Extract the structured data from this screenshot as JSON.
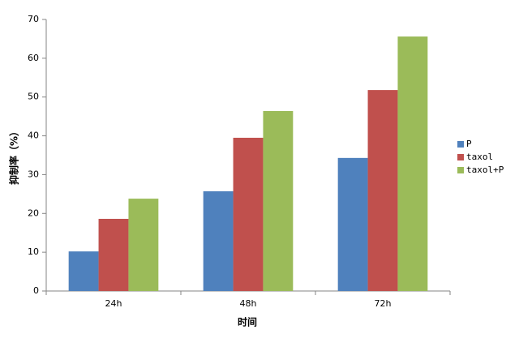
{
  "chart_data": {
    "type": "bar",
    "categories": [
      "24h",
      "48h",
      "72h"
    ],
    "series": [
      {
        "name": "P",
        "color": "#4f81bd",
        "values": [
          10.2,
          25.7,
          34.3
        ]
      },
      {
        "name": "taxol",
        "color": "#c0504d",
        "values": [
          18.6,
          39.5,
          51.8
        ]
      },
      {
        "name": "taxol+P",
        "color": "#9bbb59",
        "values": [
          23.8,
          46.4,
          65.6
        ]
      }
    ],
    "ylim": [
      0,
      70
    ],
    "yticks": [
      0,
      10,
      20,
      30,
      40,
      50,
      60,
      70
    ],
    "x_label": "时间",
    "y_label": "抑制率（%）",
    "grid": false,
    "legend": "right"
  }
}
